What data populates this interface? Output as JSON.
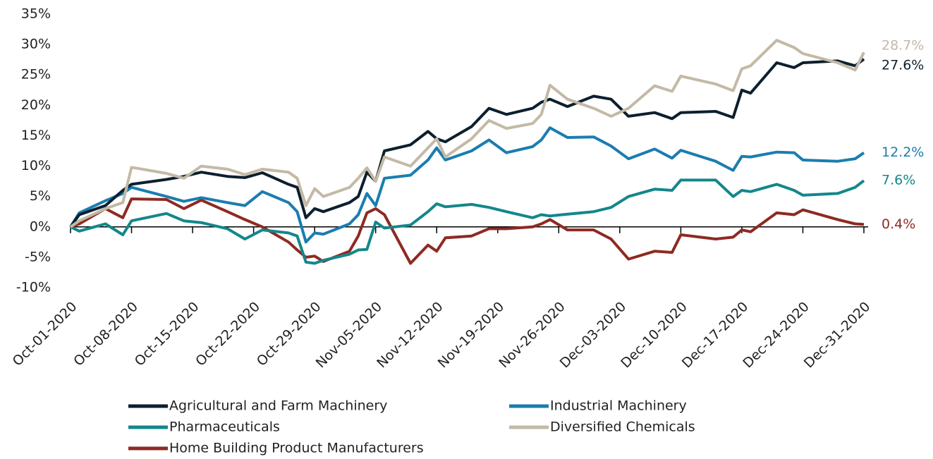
{
  "chart_data": {
    "type": "line",
    "x": [
      "Oct-01-2020",
      "Oct-02-2020",
      "Oct-05-2020",
      "Oct-07-2020",
      "Oct-08-2020",
      "Oct-12-2020",
      "Oct-14-2020",
      "Oct-16-2020",
      "Oct-19-2020",
      "Oct-21-2020",
      "Oct-23-2020",
      "Oct-26-2020",
      "Oct-27-2020",
      "Oct-28-2020",
      "Oct-29-2020",
      "Oct-30-2020",
      "Nov-02-2020",
      "Nov-03-2020",
      "Nov-04-2020",
      "Nov-05-2020",
      "Nov-06-2020",
      "Nov-09-2020",
      "Nov-11-2020",
      "Nov-12-2020",
      "Nov-13-2020",
      "Nov-16-2020",
      "Nov-18-2020",
      "Nov-20-2020",
      "Nov-23-2020",
      "Nov-24-2020",
      "Nov-25-2020",
      "Nov-27-2020",
      "Nov-30-2020",
      "Dec-02-2020",
      "Dec-04-2020",
      "Dec-07-2020",
      "Dec-09-2020",
      "Dec-10-2020",
      "Dec-14-2020",
      "Dec-16-2020",
      "Dec-17-2020",
      "Dec-18-2020",
      "Dec-21-2020",
      "Dec-23-2020",
      "Dec-24-2020",
      "Dec-28-2020",
      "Dec-30-2020",
      "Dec-31-2020"
    ],
    "series": [
      {
        "name": "Agricultural and Farm Machinery",
        "color": "#0c1f2e",
        "end_label": "27.6%",
        "values": [
          0,
          2,
          3.5,
          6,
          7,
          7.8,
          8.3,
          9,
          8.3,
          8.1,
          8.9,
          7,
          6.5,
          1.5,
          3,
          2.5,
          4,
          5,
          9,
          7.5,
          12.5,
          13.5,
          15.7,
          14.5,
          14,
          16.5,
          19.5,
          18.5,
          19.5,
          20.5,
          21,
          19.8,
          21.5,
          21,
          18.2,
          18.8,
          17.8,
          18.8,
          19,
          18,
          22.5,
          22,
          27,
          26.2,
          27,
          27.3,
          26.5,
          27.6
        ]
      },
      {
        "name": "Industrial Machinery",
        "color": "#1a7db0",
        "end_label": "12.2%",
        "values": [
          0,
          2.3,
          4.3,
          5.5,
          6.5,
          5,
          4.2,
          4.8,
          4,
          3.5,
          5.8,
          4,
          2.5,
          -2.5,
          -1,
          -1.2,
          0.5,
          2,
          5.5,
          3.5,
          8,
          8.5,
          11,
          13,
          11,
          12.5,
          14.3,
          12.2,
          13.2,
          14.3,
          16.3,
          14.7,
          14.8,
          13.3,
          11.2,
          12.8,
          11.3,
          12.6,
          10.8,
          9.3,
          11.6,
          11.5,
          12.3,
          12.2,
          11,
          10.8,
          11.2,
          12.2
        ]
      },
      {
        "name": "Pharmaceuticals",
        "color": "#13878a",
        "end_label": "7.6%",
        "values": [
          0,
          -0.7,
          0.5,
          -1.3,
          1,
          2.2,
          1,
          0.7,
          -0.3,
          -2,
          -0.5,
          -1,
          -1.5,
          -5.8,
          -6,
          -5.5,
          -4.5,
          -3.8,
          -3.7,
          0.8,
          -0.2,
          0.3,
          2.5,
          3.8,
          3.3,
          3.7,
          3.2,
          2.5,
          1.5,
          2,
          1.8,
          2.1,
          2.5,
          3.2,
          5,
          6.2,
          6,
          7.7,
          7.7,
          5,
          6,
          5.8,
          7,
          6,
          5.2,
          5.5,
          6.5,
          7.6
        ]
      },
      {
        "name": "Diversified Chemicals",
        "color": "#c3b9a6",
        "end_label": "28.7%",
        "values": [
          0,
          1,
          3,
          4,
          9.8,
          8.8,
          8,
          10,
          9.5,
          8.6,
          9.5,
          9,
          8,
          3.5,
          6.3,
          5,
          6.5,
          8,
          9.7,
          7.5,
          11.5,
          10,
          13,
          14.5,
          11.5,
          14.5,
          17.5,
          16.2,
          17,
          18.5,
          23.3,
          21,
          19.5,
          18.2,
          19.5,
          23.2,
          22.3,
          24.8,
          23.5,
          22.4,
          26,
          26.5,
          30.7,
          29.5,
          28.5,
          27,
          25.8,
          28.7
        ]
      },
      {
        "name": "Home Building Product Manufacturers",
        "color": "#8e2a22",
        "end_label": "0.4%",
        "values": [
          0,
          0.5,
          3,
          1.5,
          4.6,
          4.5,
          3,
          4.4,
          2.5,
          1.2,
          0,
          -2.5,
          -3.8,
          -5,
          -4.8,
          -5.7,
          -4,
          -1.5,
          2.3,
          3,
          2,
          -6,
          -3,
          -4,
          -1.8,
          -1.5,
          -0.3,
          -0.3,
          0,
          0.5,
          1.2,
          -0.5,
          -0.5,
          -2,
          -5.3,
          -4,
          -4.2,
          -1.3,
          -2,
          -1.7,
          -0.5,
          -0.8,
          2.3,
          2,
          2.8,
          1.2,
          0.5,
          0.4
        ]
      }
    ],
    "xlim": [
      "Oct-01-2020",
      "Dec-31-2020"
    ],
    "xticks": [
      "Oct-01-2020",
      "Oct-08-2020",
      "Oct-15-2020",
      "Oct-22-2020",
      "Oct-29-2020",
      "Nov-05-2020",
      "Nov-12-2020",
      "Nov-19-2020",
      "Nov-26-2020",
      "Dec-03-2020",
      "Dec-10-2020",
      "Dec-17-2020",
      "Dec-24-2020",
      "Dec-31-2020"
    ],
    "ylim": [
      -10,
      35
    ],
    "yticks": [
      {
        "value": -10,
        "label": "-10%"
      },
      {
        "value": -5,
        "label": "-5%"
      },
      {
        "value": 0,
        "label": "0%"
      },
      {
        "value": 5,
        "label": "5%"
      },
      {
        "value": 10,
        "label": "10%"
      },
      {
        "value": 15,
        "label": "15%"
      },
      {
        "value": 20,
        "label": "20%"
      },
      {
        "value": 25,
        "label": "25%"
      },
      {
        "value": 30,
        "label": "30%"
      },
      {
        "value": 35,
        "label": "35%"
      }
    ],
    "grid": false,
    "legend": "bottom"
  }
}
